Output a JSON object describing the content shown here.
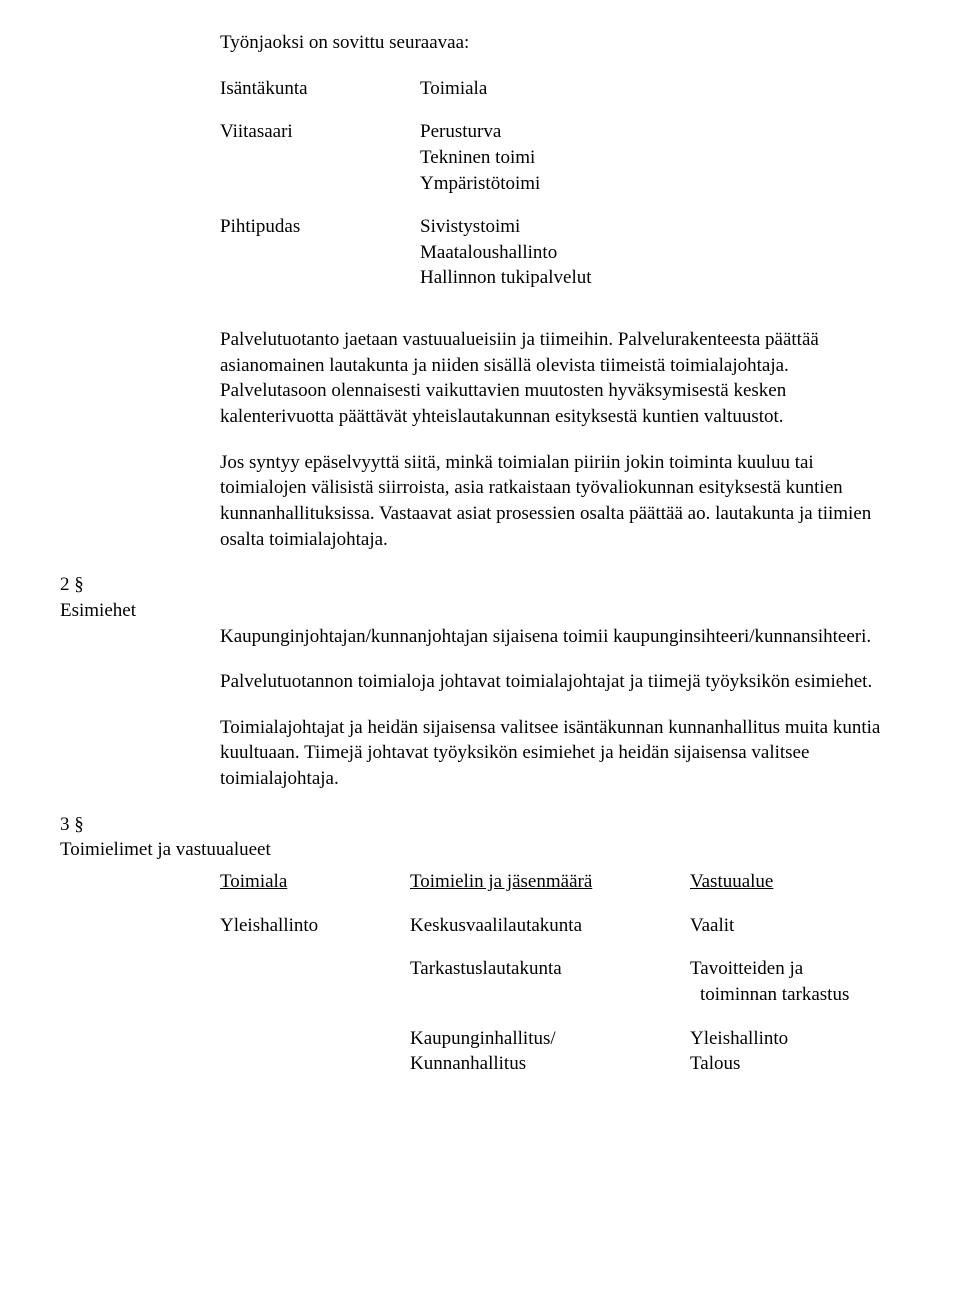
{
  "intro": "Työnjaoksi on sovittu seuraavaa:",
  "hostTable": {
    "header": {
      "c1": "Isäntäkunta",
      "c2": "Toimiala"
    },
    "rows": [
      {
        "c1": "Viitasaari",
        "c2": "Perusturva\nTekninen toimi\nYmpäristötoimi"
      },
      {
        "c1": "Pihtipudas",
        "c2": "Sivistystoimi\nMaataloushallinto\nHallinnon tukipalvelut"
      }
    ]
  },
  "para1": "Palvelutuotanto jaetaan vastuualueisiin ja tiimeihin. Palvelurakenteesta päättää asianomainen lautakunta ja niiden sisällä olevista tiimeistä toimialajohtaja. Palvelutasoon olennaisesti vaikuttavien muutosten hyväksymisestä kesken kalenterivuotta päättävät yhteislautakunnan esityksestä kuntien valtuustot.",
  "para2": "Jos syntyy epäselvyyttä siitä, minkä toimialan piiriin jokin toiminta kuuluu tai toimialojen välisistä siirroista, asia ratkaistaan työvaliokunnan esityksestä kuntien kunnanhallituksissa. Vastaavat asiat prosessien osalta päättää ao. lautakunta ja tiimien osalta toimialajohtaja.",
  "section2": {
    "num": "2 §",
    "title": "Esimiehet",
    "p1": "Kaupunginjohtajan/kunnanjohtajan sijaisena toimii kaupunginsihteeri/kunnansihteeri.",
    "p2": "Palvelutuotannon toimialoja johtavat toimialajohtajat ja tiimejä työyksikön esimiehet.",
    "p3": "Toimialajohtajat ja heidän sijaisensa valitsee isäntäkunnan kunnanhallitus muita kuntia kuultuaan. Tiimejä johtavat työyksikön esimiehet ja heidän sijaisensa valitsee toimialajohtaja."
  },
  "section3": {
    "num": "3 §",
    "title": "Toimielimet ja vastuualueet",
    "table": {
      "header": {
        "a": "Toimiala",
        "b": "Toimielin ja jäsenmäärä",
        "c": "Vastuualue"
      },
      "rows": [
        {
          "a": "Yleishallinto",
          "b": "Keskusvaalilautakunta",
          "c": "Vaalit"
        },
        {
          "a": "",
          "b": "Tarkastuslautakunta",
          "c": "Tavoitteiden ja",
          "c2": "toiminnan tarkastus"
        },
        {
          "a": "",
          "b": "Kaupunginhallitus/\nKunnanhallitus",
          "c": "Yleishallinto\nTalous"
        }
      ]
    }
  }
}
